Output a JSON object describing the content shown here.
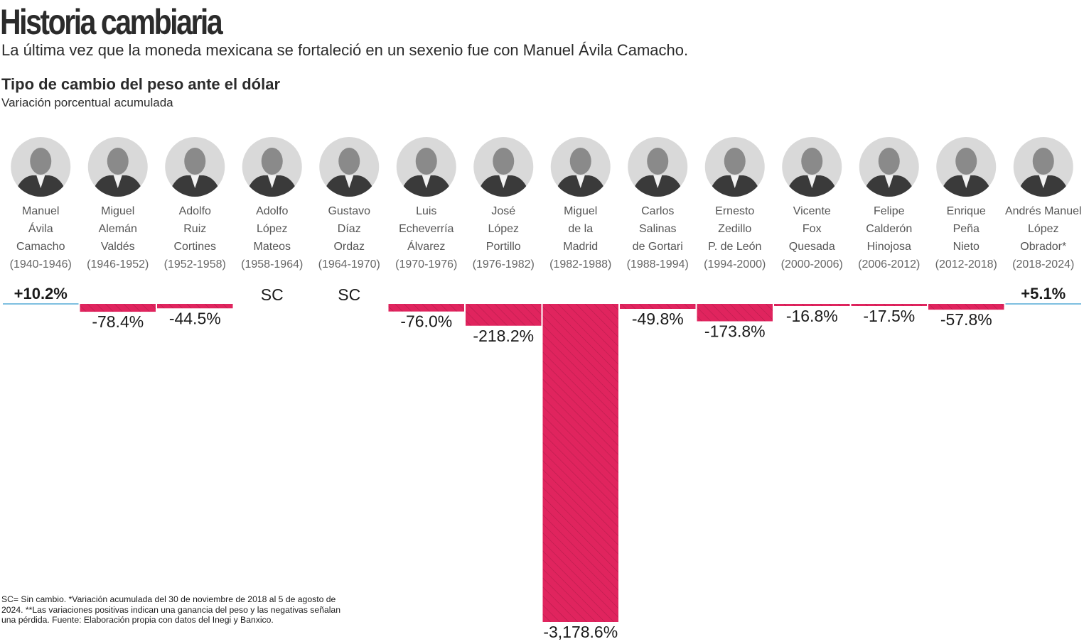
{
  "header": {
    "title": "Historia cambiaria",
    "subtitle": "La última vez que la moneda mexicana se fortaleció en un sexenio fue con Manuel Ávila Camacho."
  },
  "footnote": "SC= Sin cambio. *Variación acumulada del 30 de noviembre de 2018 al 5 de agosto de 2024. **Las variaciones positivas indican una ganancia del peso y las negativas señalan una pérdida. Fuente: Elaboración propia con datos del Inegi y Banxico.",
  "colors": {
    "negative": "#e0245e",
    "negative_hatch": "#b81c4c",
    "positive": "#7fc0e0",
    "portrait_bg": "#d9d9d9"
  },
  "chart_data": {
    "type": "bar",
    "title": "Tipo de cambio del peso ante el dólar",
    "subtitle": "Variación porcentual acumulada",
    "xlabel": "",
    "ylabel": "",
    "unit": "%",
    "ylim": [
      -3178.6,
      10.2
    ],
    "categories": [
      {
        "name": [
          "Manuel",
          "Ávila",
          "Camacho"
        ],
        "term": "(1940-1946)",
        "value": 10.2,
        "label": "+10.2%"
      },
      {
        "name": [
          "Miguel",
          "Alemán",
          "Valdés"
        ],
        "term": "(1946-1952)",
        "value": -78.4,
        "label": "-78.4%"
      },
      {
        "name": [
          "Adolfo",
          "Ruiz",
          "Cortines"
        ],
        "term": "(1952-1958)",
        "value": -44.5,
        "label": "-44.5%"
      },
      {
        "name": [
          "Adolfo",
          "López",
          "Mateos"
        ],
        "term": "(1958-1964)",
        "value": 0,
        "label": "SC"
      },
      {
        "name": [
          "Gustavo",
          "Díaz",
          "Ordaz"
        ],
        "term": "(1964-1970)",
        "value": 0,
        "label": "SC"
      },
      {
        "name": [
          "Luis",
          "Echeverría",
          "Álvarez"
        ],
        "term": "(1970-1976)",
        "value": -76.0,
        "label": "-76.0%"
      },
      {
        "name": [
          "José",
          "López",
          "Portillo"
        ],
        "term": "(1976-1982)",
        "value": -218.2,
        "label": "-218.2%"
      },
      {
        "name": [
          "Miguel",
          "de la",
          "Madrid"
        ],
        "term": "(1982-1988)",
        "value": -3178.6,
        "label": "-3,178.6%"
      },
      {
        "name": [
          "Carlos",
          "Salinas",
          "de Gortari"
        ],
        "term": "(1988-1994)",
        "value": -49.8,
        "label": "-49.8%"
      },
      {
        "name": [
          "Ernesto",
          "Zedillo",
          "P. de León"
        ],
        "term": "(1994-2000)",
        "value": -173.8,
        "label": "-173.8%"
      },
      {
        "name": [
          "Vicente",
          "Fox",
          "Quesada"
        ],
        "term": "(2000-2006)",
        "value": -16.8,
        "label": "-16.8%"
      },
      {
        "name": [
          "Felipe",
          "Calderón",
          "Hinojosa"
        ],
        "term": "(2006-2012)",
        "value": -17.5,
        "label": "-17.5%"
      },
      {
        "name": [
          "Enrique",
          "Peña",
          "Nieto"
        ],
        "term": "(2012-2018)",
        "value": -57.8,
        "label": "-57.8%"
      },
      {
        "name": [
          "Andrés Manuel",
          "López",
          "Obrador*"
        ],
        "term": "(2018-2024)",
        "value": 5.1,
        "label": "+5.1%"
      }
    ]
  }
}
